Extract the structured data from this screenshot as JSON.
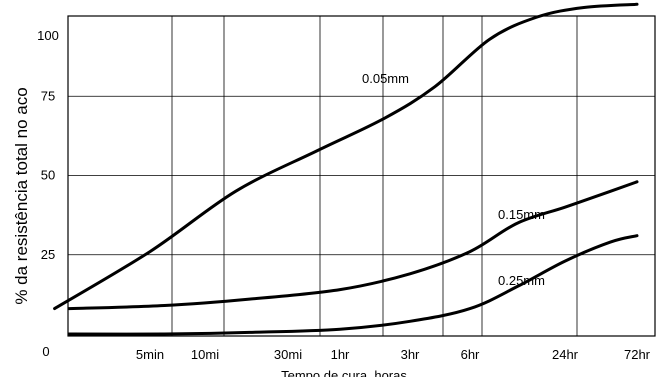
{
  "chart_data": {
    "type": "line",
    "title": "",
    "xlabel": "Tempo de cura, horas",
    "ylabel": "% da resistência total no aco",
    "x_scale": "log",
    "x_tick_labels": [
      "5min",
      "10mi",
      "30mi",
      "1hr",
      "3hr",
      "6hr",
      "24hr",
      "72hr"
    ],
    "x_tick_hours": [
      0.0833,
      0.1667,
      0.5,
      1,
      3,
      6,
      24,
      72
    ],
    "y_tick_labels": [
      "0",
      "25",
      "50",
      "75",
      "100"
    ],
    "ylim": [
      0,
      100
    ],
    "grid": true,
    "series": [
      {
        "name": "0.05mm",
        "x": [
          0.025,
          0.0833,
          0.25,
          0.75,
          2,
          4,
          8,
          16,
          32,
          72
        ],
        "y": [
          8,
          26,
          45,
          58,
          68,
          78,
          93,
          100,
          103,
          104
        ]
      },
      {
        "name": "0.15mm",
        "x": [
          0.03,
          0.1,
          0.3,
          1,
          3,
          6,
          12,
          24,
          48,
          72
        ],
        "y": [
          8,
          9,
          11,
          14,
          19,
          26,
          35,
          40,
          45,
          48
        ]
      },
      {
        "name": "0.25mm",
        "x": [
          0.03,
          0.1,
          0.3,
          1,
          3,
          6,
          12,
          24,
          48,
          72
        ],
        "y": [
          0,
          0,
          0.5,
          1.5,
          4,
          8,
          15,
          23,
          29,
          31
        ]
      }
    ]
  }
}
